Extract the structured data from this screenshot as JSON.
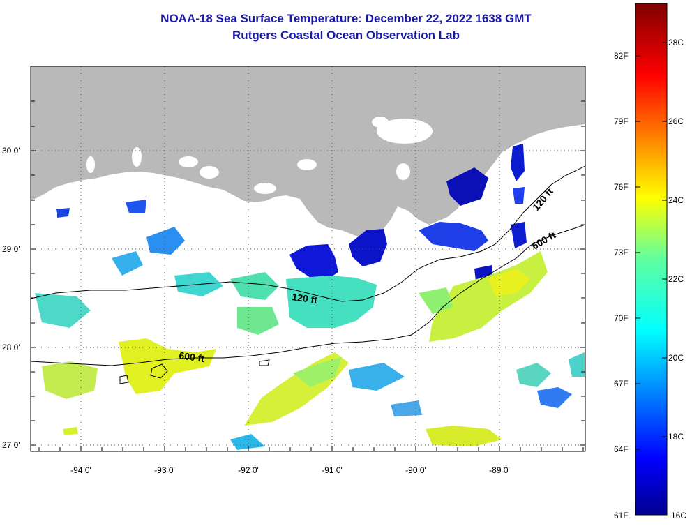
{
  "header": {
    "title_line1": "NOAA-18 Sea Surface Temperature:  December 22, 2022 1638 GMT",
    "title_line2": "Rutgers Coastal Ocean Observation Lab"
  },
  "map": {
    "lat_labels": [
      "30 0'",
      "29 0'",
      "28 0'",
      "27 0'"
    ],
    "lon_labels": [
      "-94 0'",
      "-93 0'",
      "-92 0'",
      "-91 0'",
      "-90 0'",
      "-89 0'"
    ],
    "contour_labels": [
      "120 ft",
      "120 ft",
      "600 ft",
      "600 ft"
    ],
    "colors": {
      "land": "#b9b9b9",
      "no_data": "#ffffff"
    }
  },
  "colorbar": {
    "fahrenheit_labels": [
      "82F",
      "79F",
      "76F",
      "73F",
      "70F",
      "67F",
      "64F",
      "61F"
    ],
    "celsius_labels": [
      "28C",
      "26C",
      "24C",
      "22C",
      "20C",
      "18C",
      "16C"
    ],
    "range_c": [
      16,
      29
    ]
  }
}
